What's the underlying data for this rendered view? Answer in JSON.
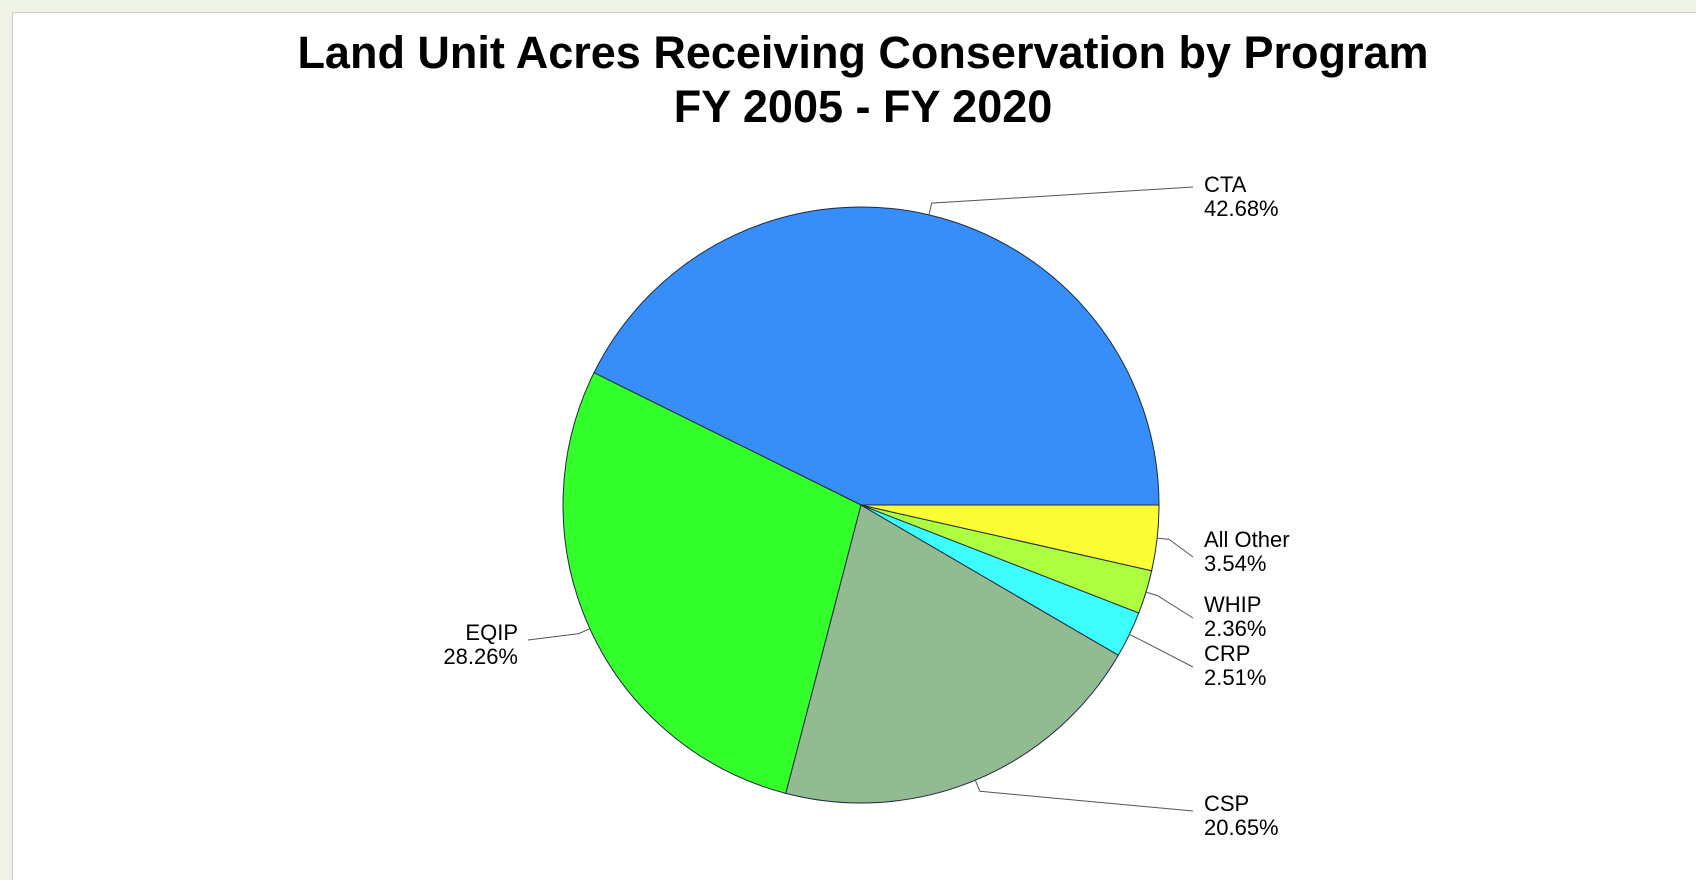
{
  "chart_data": {
    "type": "pie",
    "title": "Land Unit Acres Receiving Conservation by Program",
    "subtitle": "FY 2005 - FY 2020",
    "legend": "none",
    "slices": [
      {
        "name": "CTA",
        "value": 42.68,
        "label": "42.68%",
        "color": "#388ef8"
      },
      {
        "name": "EQIP",
        "value": 28.26,
        "label": "28.26%",
        "color": "#33ff2a"
      },
      {
        "name": "CSP",
        "value": 20.65,
        "label": "20.65%",
        "color": "#93bb91"
      },
      {
        "name": "CRP",
        "value": 2.51,
        "label": "2.51%",
        "color": "#3dfdfd"
      },
      {
        "name": "WHIP",
        "value": 2.36,
        "label": "2.36%",
        "color": "#adfd41"
      },
      {
        "name": "All Other",
        "value": 3.54,
        "label": "3.54%",
        "color": "#fdfd36"
      }
    ]
  }
}
